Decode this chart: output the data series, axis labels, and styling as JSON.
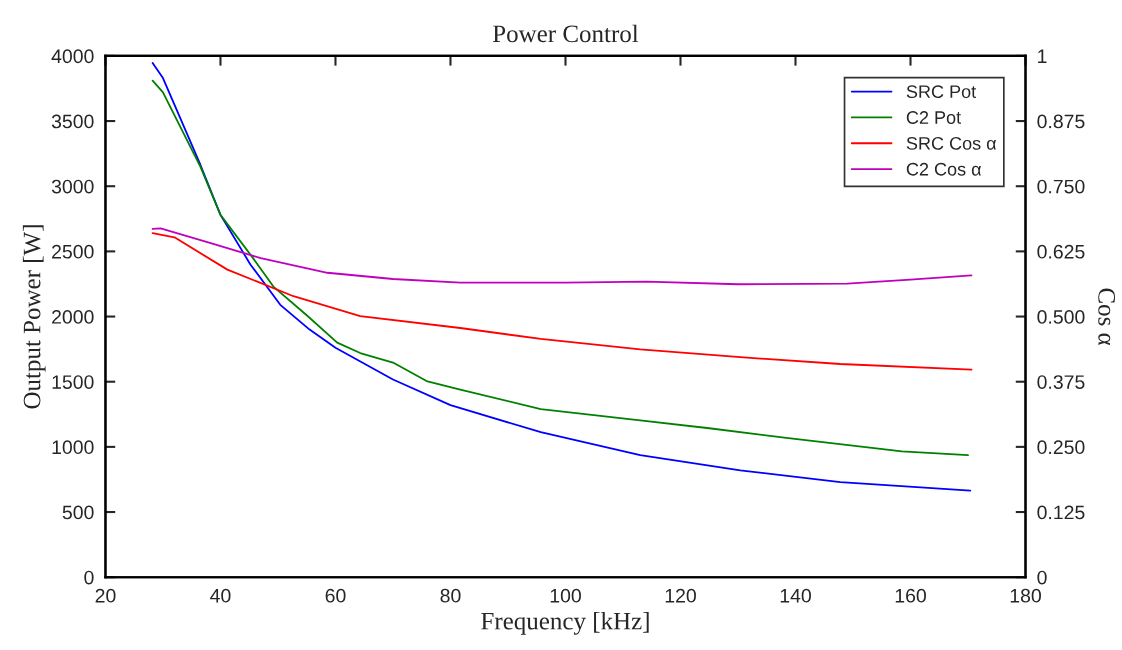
{
  "chart_data": {
    "type": "line",
    "title": "Power Control",
    "xlabel": "Frequency [kHz]",
    "ylabel": "Output Power [W]",
    "y2label": "Cos α",
    "xlim": [
      20,
      180
    ],
    "xticks": [
      20,
      40,
      60,
      80,
      100,
      120,
      140,
      160,
      180
    ],
    "ylim": [
      0,
      4000
    ],
    "yticks": [
      0,
      500,
      1000,
      1500,
      2000,
      2500,
      3000,
      3500,
      4000
    ],
    "y2lim": [
      0,
      1
    ],
    "y2ticks": [
      0,
      {
        "value": 0.125,
        "label": "0.125"
      },
      {
        "value": 0.25,
        "label": "0.250"
      },
      {
        "value": 0.375,
        "label": "0.375"
      },
      {
        "value": 0.5,
        "label": "0.500"
      },
      {
        "value": 0.625,
        "label": "0.625"
      },
      {
        "value": 0.75,
        "label": "0.750"
      },
      {
        "value": 0.875,
        "label": "0.875"
      },
      1
    ],
    "grid": false,
    "legend": "top right",
    "line_style": "solid",
    "marker": "none",
    "series": [
      {
        "name": "SRC Pot",
        "color": "#0000ff",
        "x": [
          28.2,
          30,
          36.5,
          40,
          45.2,
          50.4,
          55.5,
          60,
          70,
          80,
          95.7,
          113,
          130.4,
          147.8,
          170.4
        ],
        "values": [
          3945,
          3830,
          3165,
          2780,
          2400,
          2090,
          1900,
          1760,
          1517,
          1320,
          1113,
          936,
          820,
          730,
          665
        ]
      },
      {
        "name": "C2 Pot",
        "color": "#008000",
        "x": [
          28.2,
          30,
          36.5,
          40,
          45.6,
          49.2,
          55,
          60.3,
          64.3,
          70,
          76,
          81.7,
          95.7,
          113,
          125,
          138.4,
          158.5,
          170
        ],
        "values": [
          3810,
          3720,
          3150,
          2780,
          2452,
          2230,
          2010,
          1800,
          1720,
          1647,
          1502,
          1440,
          1290,
          1203,
          1143,
          1069,
          966,
          936
        ]
      },
      {
        "name": "SRC Cos α",
        "color": "#ff0000",
        "axis": "y2",
        "x": [
          28.2,
          32,
          41.2,
          52.7,
          64.3,
          81.7,
          95.7,
          113,
          130.4,
          147.8,
          170.6
        ],
        "values": [
          0.66,
          0.652,
          0.59,
          0.539,
          0.501,
          0.478,
          0.457,
          0.437,
          0.422,
          0.409,
          0.398
        ]
      },
      {
        "name": "C2 Cos α",
        "color": "#bf00bf",
        "axis": "y2",
        "x": [
          28.2,
          29.6,
          38.3,
          47,
          58.6,
          70,
          81.7,
          100,
          114,
          130,
          149,
          160,
          170.6
        ],
        "values": [
          0.668,
          0.669,
          0.641,
          0.612,
          0.584,
          0.572,
          0.565,
          0.565,
          0.567,
          0.562,
          0.563,
          0.571,
          0.579
        ]
      }
    ]
  }
}
